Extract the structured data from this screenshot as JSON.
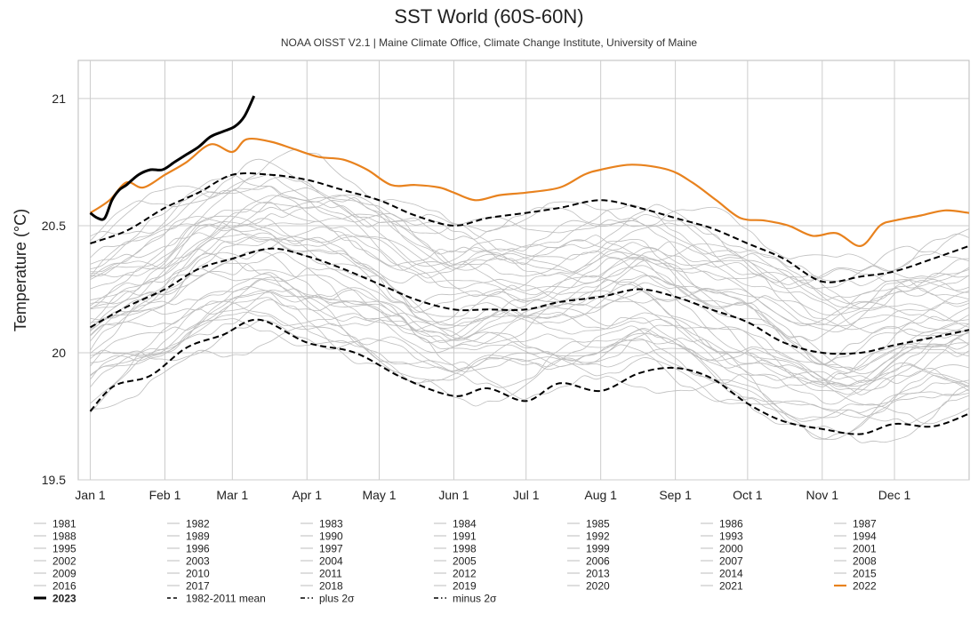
{
  "chart_data": {
    "type": "line",
    "title": "SST World (60S-60N)",
    "subtitle": "NOAA OISST V2.1 | Maine Climate Office, Climate Change Institute, University of Maine",
    "ylabel": "Temperature (°C)",
    "ylim": [
      19.5,
      21.15
    ],
    "yticks": [
      19.5,
      20,
      20.5,
      21
    ],
    "ytick_labels": [
      "19.5",
      "20",
      "20.5",
      "21"
    ],
    "x_unit": "day of year",
    "xlim": [
      -5,
      365
    ],
    "xticks": [
      {
        "label": "Jan 1",
        "day": 0
      },
      {
        "label": "Feb 1",
        "day": 31
      },
      {
        "label": "Mar 1",
        "day": 59
      },
      {
        "label": "Apr 1",
        "day": 90
      },
      {
        "label": "May 1",
        "day": 120
      },
      {
        "label": "Jun 1",
        "day": 151
      },
      {
        "label": "Jul 1",
        "day": 181
      },
      {
        "label": "Aug 1",
        "day": 212
      },
      {
        "label": "Sep 1",
        "day": 243
      },
      {
        "label": "Oct 1",
        "day": 273
      },
      {
        "label": "Nov 1",
        "day": 304
      },
      {
        "label": "Dec 1",
        "day": 334
      }
    ],
    "grid": true,
    "background_years": [
      "1981",
      "1982",
      "1983",
      "1984",
      "1985",
      "1986",
      "1987",
      "1988",
      "1989",
      "1990",
      "1991",
      "1992",
      "1993",
      "1994",
      "1995",
      "1996",
      "1997",
      "1998",
      "1999",
      "2000",
      "2001",
      "2002",
      "2003",
      "2004",
      "2005",
      "2006",
      "2007",
      "2008",
      "2009",
      "2010",
      "2011",
      "2012",
      "2013",
      "2014",
      "2015",
      "2016",
      "2017",
      "2018",
      "2019",
      "2020",
      "2021"
    ],
    "highlight_series": [
      {
        "name": "2022",
        "color": "#e8821e",
        "style": "solid",
        "width": 2.2,
        "x": [
          0,
          8,
          15,
          22,
          31,
          40,
          50,
          59,
          65,
          75,
          85,
          95,
          105,
          115,
          125,
          135,
          145,
          151,
          160,
          170,
          181,
          195,
          205,
          212,
          225,
          240,
          250,
          260,
          270,
          280,
          290,
          300,
          310,
          320,
          328,
          334,
          345,
          355,
          365
        ],
        "y": [
          20.55,
          20.6,
          20.67,
          20.65,
          20.7,
          20.75,
          20.82,
          20.79,
          20.84,
          20.83,
          20.8,
          20.77,
          20.76,
          20.72,
          20.66,
          20.66,
          20.65,
          20.63,
          20.6,
          20.62,
          20.63,
          20.65,
          20.7,
          20.72,
          20.74,
          20.72,
          20.67,
          20.6,
          20.53,
          20.52,
          20.5,
          20.46,
          20.47,
          20.42,
          20.5,
          20.52,
          20.54,
          20.56,
          20.55
        ]
      },
      {
        "name": "2023",
        "color": "#000000",
        "style": "solid",
        "width": 3,
        "x": [
          0,
          3,
          6,
          9,
          12,
          15,
          20,
          25,
          30,
          35,
          40,
          45,
          50,
          55,
          60,
          64,
          68
        ],
        "y": [
          20.55,
          20.53,
          20.53,
          20.6,
          20.64,
          20.66,
          20.7,
          20.72,
          20.72,
          20.75,
          20.78,
          20.81,
          20.85,
          20.87,
          20.89,
          20.93,
          21.01
        ]
      },
      {
        "name": "1982-2011 mean",
        "color": "#000000",
        "style": "dashed",
        "width": 2,
        "x": [
          0,
          15,
          31,
          45,
          59,
          75,
          90,
          105,
          120,
          135,
          151,
          165,
          181,
          195,
          212,
          228,
          243,
          258,
          273,
          288,
          304,
          320,
          334,
          350,
          365
        ],
        "y": [
          20.1,
          20.18,
          20.25,
          20.33,
          20.37,
          20.41,
          20.38,
          20.33,
          20.27,
          20.21,
          20.17,
          20.17,
          20.17,
          20.2,
          20.22,
          20.25,
          20.22,
          20.17,
          20.12,
          20.04,
          20.0,
          20.0,
          20.03,
          20.06,
          20.09
        ]
      },
      {
        "name": "plus 2σ",
        "color": "#000000",
        "style": "dashed",
        "width": 2,
        "x": [
          0,
          15,
          31,
          45,
          59,
          75,
          90,
          105,
          120,
          135,
          151,
          165,
          181,
          195,
          212,
          228,
          243,
          258,
          273,
          288,
          304,
          320,
          334,
          350,
          365
        ],
        "y": [
          20.43,
          20.48,
          20.57,
          20.63,
          20.7,
          20.7,
          20.68,
          20.64,
          20.6,
          20.54,
          20.5,
          20.53,
          20.55,
          20.57,
          20.6,
          20.57,
          20.53,
          20.49,
          20.43,
          20.37,
          20.28,
          20.3,
          20.32,
          20.37,
          20.42
        ]
      },
      {
        "name": "minus 2σ",
        "color": "#000000",
        "style": "dashed",
        "width": 2,
        "x": [
          0,
          10,
          25,
          40,
          55,
          70,
          90,
          110,
          130,
          151,
          165,
          181,
          195,
          212,
          228,
          243,
          258,
          273,
          288,
          304,
          320,
          334,
          350,
          365
        ],
        "y": [
          19.77,
          19.87,
          19.91,
          20.02,
          20.07,
          20.13,
          20.04,
          20.0,
          19.9,
          19.83,
          19.86,
          19.81,
          19.88,
          19.85,
          19.92,
          19.94,
          19.9,
          19.8,
          19.73,
          19.7,
          19.68,
          19.72,
          19.71,
          19.76
        ]
      }
    ],
    "legend": {
      "placement": "bottom",
      "columns": 7,
      "entries": [
        {
          "label": "1981",
          "style": "gray"
        },
        {
          "label": "1982",
          "style": "gray"
        },
        {
          "label": "1983",
          "style": "gray"
        },
        {
          "label": "1984",
          "style": "gray"
        },
        {
          "label": "1985",
          "style": "gray"
        },
        {
          "label": "1986",
          "style": "gray"
        },
        {
          "label": "1987",
          "style": "gray"
        },
        {
          "label": "1988",
          "style": "gray"
        },
        {
          "label": "1989",
          "style": "gray"
        },
        {
          "label": "1990",
          "style": "gray"
        },
        {
          "label": "1991",
          "style": "gray"
        },
        {
          "label": "1992",
          "style": "gray"
        },
        {
          "label": "1993",
          "style": "gray"
        },
        {
          "label": "1994",
          "style": "gray"
        },
        {
          "label": "1995",
          "style": "gray"
        },
        {
          "label": "1996",
          "style": "gray"
        },
        {
          "label": "1997",
          "style": "gray"
        },
        {
          "label": "1998",
          "style": "gray"
        },
        {
          "label": "1999",
          "style": "gray"
        },
        {
          "label": "2000",
          "style": "gray"
        },
        {
          "label": "2001",
          "style": "gray"
        },
        {
          "label": "2002",
          "style": "gray"
        },
        {
          "label": "2003",
          "style": "gray"
        },
        {
          "label": "2004",
          "style": "gray"
        },
        {
          "label": "2005",
          "style": "gray"
        },
        {
          "label": "2006",
          "style": "gray"
        },
        {
          "label": "2007",
          "style": "gray"
        },
        {
          "label": "2008",
          "style": "gray"
        },
        {
          "label": "2009",
          "style": "gray"
        },
        {
          "label": "2010",
          "style": "gray"
        },
        {
          "label": "2011",
          "style": "gray"
        },
        {
          "label": "2012",
          "style": "gray"
        },
        {
          "label": "2013",
          "style": "gray"
        },
        {
          "label": "2014",
          "style": "gray"
        },
        {
          "label": "2015",
          "style": "gray"
        },
        {
          "label": "2016",
          "style": "gray"
        },
        {
          "label": "2017",
          "style": "gray"
        },
        {
          "label": "2018",
          "style": "gray"
        },
        {
          "label": "2019",
          "style": "gray"
        },
        {
          "label": "2020",
          "style": "gray"
        },
        {
          "label": "2021",
          "style": "gray"
        },
        {
          "label": "2022",
          "style": "orange"
        },
        {
          "label": "2023",
          "style": "black-bold"
        },
        {
          "label": "1982-2011 mean",
          "style": "dashed"
        },
        {
          "label": "plus 2σ",
          "style": "dashdot"
        },
        {
          "label": "minus 2σ",
          "style": "dashdot"
        }
      ]
    },
    "colors": {
      "background_years": "#bdbdbd",
      "grid": "#cccccc",
      "frame": "#bbbbbb",
      "highlight_2022": "#e8821e",
      "highlight_2023": "#000000"
    }
  }
}
